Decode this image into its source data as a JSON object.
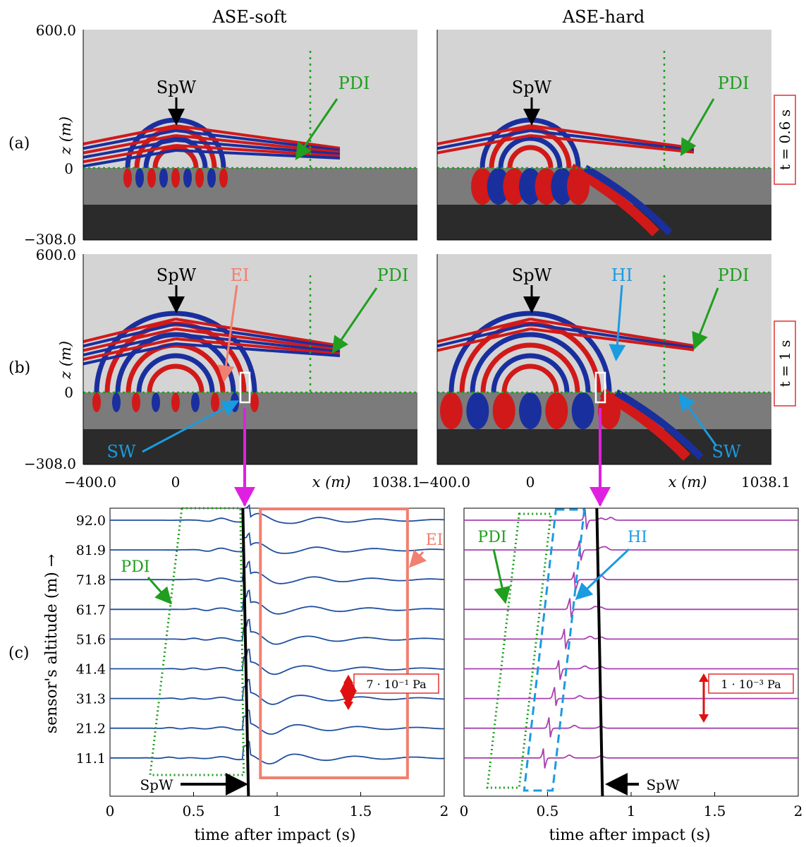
{
  "columns": {
    "left": "ASE-soft",
    "right": "ASE-hard"
  },
  "panel_labels": {
    "a": "(a)",
    "b": "(b)",
    "c": "(c)"
  },
  "times": {
    "a": "t = 0.6 s",
    "b": "t = 1 s"
  },
  "field_axes": {
    "z_label": "z (m)",
    "x_label": "x (m)",
    "z_top": "600.0",
    "z_zero": "0",
    "z_bottom": "−308.0",
    "x_left": "−400.0",
    "x_zero": "0",
    "x_right": "1038.1"
  },
  "annotations": {
    "spw": "SpW",
    "pdi": "PDI",
    "ei": "EI",
    "hi": "HI",
    "sw": "SW"
  },
  "colors": {
    "positive": "#d11919",
    "negative": "#1a2f9e",
    "air": "#d4d4d4",
    "soil": "#7b7b7b",
    "bedrock": "#2b2b2b",
    "pdi": "#1f9e1f",
    "ei": "#f08070",
    "hi": "#1b9be0",
    "arrow": "#e020e0",
    "trace_soft": "#1f4f9f",
    "trace_hard": "#a840b0"
  },
  "chart_data": [
    {
      "type": "line",
      "panel": "(c) ASE-soft",
      "xlabel": "time after impact (s)",
      "ylabel": "sensor's altitude (m) →",
      "xlim": [
        0,
        2
      ],
      "x_ticks": [
        "0",
        "0.5",
        "1",
        "1.5",
        "2"
      ],
      "altitudes": [
        "92.0",
        "81.9",
        "71.8",
        "61.7",
        "51.6",
        "41.4",
        "31.3",
        "21.2",
        "11.1"
      ],
      "scale_bar": "7 · 10⁻¹ Pa",
      "spw_arrival_s": 0.82,
      "labels": {
        "spw": "SpW",
        "pdi": "PDI",
        "ei": "EI"
      }
    },
    {
      "type": "line",
      "panel": "(c) ASE-hard",
      "xlabel": "time after impact (s)",
      "xlim": [
        0,
        2
      ],
      "x_ticks": [
        "0",
        "0.5",
        "1",
        "1.5",
        "2"
      ],
      "scale_bar": "1 · 10⁻³ Pa",
      "spw_arrival_s": 0.82,
      "labels": {
        "spw": "SpW",
        "pdi": "PDI",
        "hi": "HI"
      }
    }
  ]
}
